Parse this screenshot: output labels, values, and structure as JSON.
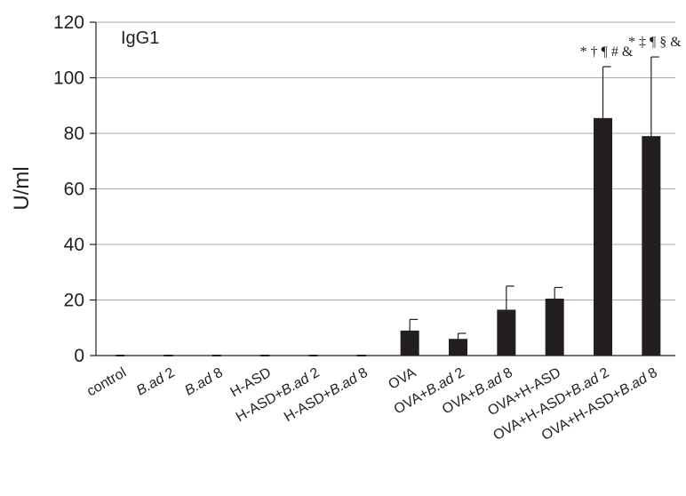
{
  "chart_data": {
    "type": "bar",
    "title": "IgG1",
    "xlabel": "",
    "ylabel": "U/ml",
    "ylim": [
      0,
      120
    ],
    "yticks": [
      0,
      20,
      40,
      60,
      80,
      100,
      120
    ],
    "grid": true,
    "categories": [
      {
        "parts": [
          {
            "t": "control",
            "i": false
          }
        ]
      },
      {
        "parts": [
          {
            "t": "B.ad",
            "i": true
          },
          {
            "t": " 2",
            "i": false
          }
        ]
      },
      {
        "parts": [
          {
            "t": "B.ad",
            "i": true
          },
          {
            "t": " 8",
            "i": false
          }
        ]
      },
      {
        "parts": [
          {
            "t": "H-ASD",
            "i": false
          }
        ]
      },
      {
        "parts": [
          {
            "t": "H-ASD+",
            "i": false
          },
          {
            "t": "B.ad",
            "i": true
          },
          {
            "t": " 2",
            "i": false
          }
        ]
      },
      {
        "parts": [
          {
            "t": "H-ASD+",
            "i": false
          },
          {
            "t": "B.ad",
            "i": true
          },
          {
            "t": " 8",
            "i": false
          }
        ]
      },
      {
        "parts": [
          {
            "t": "OVA",
            "i": false
          }
        ]
      },
      {
        "parts": [
          {
            "t": "OVA+",
            "i": false
          },
          {
            "t": "B.ad",
            "i": true
          },
          {
            "t": " 2",
            "i": false
          }
        ]
      },
      {
        "parts": [
          {
            "t": "OVA+",
            "i": false
          },
          {
            "t": "B.ad",
            "i": true
          },
          {
            "t": " 8",
            "i": false
          }
        ]
      },
      {
        "parts": [
          {
            "t": "OVA+H-ASD",
            "i": false
          }
        ]
      },
      {
        "parts": [
          {
            "t": "OVA+H-ASD+",
            "i": false
          },
          {
            "t": "B.ad",
            "i": true
          },
          {
            "t": " 2",
            "i": false
          }
        ]
      },
      {
        "parts": [
          {
            "t": "OVA+H-ASD+",
            "i": false
          },
          {
            "t": "B.ad",
            "i": true
          },
          {
            "t": " 8",
            "i": false
          }
        ]
      }
    ],
    "values": [
      0,
      0,
      0,
      0,
      0,
      0,
      9,
      6,
      16.5,
      20.5,
      85.5,
      79
    ],
    "errors": [
      0,
      0,
      0,
      0,
      0,
      0,
      4,
      2,
      8.5,
      4,
      18.5,
      28.5
    ],
    "annotations": [
      {
        "index": 10,
        "text": "* † ¶ # &"
      },
      {
        "index": 11,
        "text": "* ‡ ¶ § &"
      }
    ],
    "bar_color": "#231f20"
  }
}
